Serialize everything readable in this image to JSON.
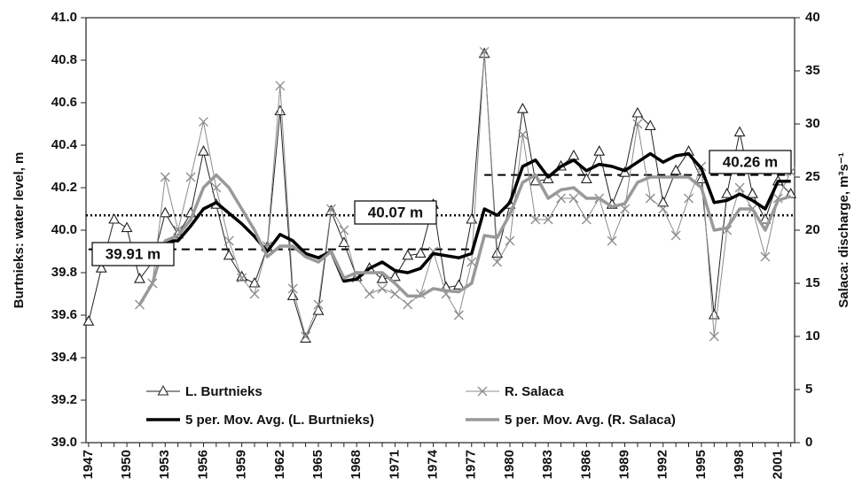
{
  "chart_data": {
    "type": "line",
    "y_label": "Burtnieks: water level, m",
    "y2_label": "Salaca: discharge, m³s⁻¹",
    "x": [
      1947,
      1948,
      1949,
      1950,
      1951,
      1952,
      1953,
      1954,
      1955,
      1956,
      1957,
      1958,
      1959,
      1960,
      1961,
      1962,
      1963,
      1964,
      1965,
      1966,
      1967,
      1968,
      1969,
      1970,
      1971,
      1972,
      1973,
      1974,
      1975,
      1976,
      1977,
      1978,
      1979,
      1980,
      1981,
      1982,
      1983,
      1984,
      1985,
      1986,
      1987,
      1988,
      1989,
      1990,
      1991,
      1992,
      1993,
      1994,
      1995,
      1996,
      1997,
      1998,
      1999,
      2000,
      2001,
      2002
    ],
    "xlim": [
      1946.8,
      2002.3
    ],
    "xticks": [
      1947,
      1950,
      1953,
      1956,
      1959,
      1962,
      1965,
      1968,
      1971,
      1974,
      1977,
      1980,
      1983,
      1986,
      1989,
      1992,
      1995,
      1998,
      2001
    ],
    "ylim": [
      39,
      41
    ],
    "yticks": [
      {
        "value": 39,
        "label": "39.0"
      },
      39.2,
      39.4,
      39.6,
      39.8,
      {
        "value": 40,
        "label": "40.0"
      },
      40.2,
      40.4,
      40.6,
      40.8,
      {
        "value": 41,
        "label": "41.0"
      }
    ],
    "y2lim": [
      0,
      40
    ],
    "y2ticks": [
      0,
      5,
      10,
      15,
      20,
      25,
      30,
      35,
      40
    ],
    "grid": false,
    "series": [
      {
        "name": "L. Burtnieks",
        "color": "#222222",
        "marker": "triangle",
        "width": 1,
        "values": [
          39.57,
          39.82,
          40.05,
          40.01,
          39.77,
          39.85,
          40.08,
          39.98,
          40.08,
          40.37,
          40.12,
          39.88,
          39.78,
          39.75,
          39.92,
          40.56,
          39.69,
          39.49,
          39.62,
          40.09,
          39.94,
          39.78,
          39.82,
          39.77,
          39.78,
          39.88,
          39.89,
          40.12,
          39.73,
          39.74,
          40.05,
          40.83,
          39.89,
          40.12,
          40.57,
          40.23,
          40.24,
          40.3,
          40.35,
          40.24,
          40.37,
          40.12,
          40.27,
          40.55,
          40.49,
          40.13,
          40.28,
          40.37,
          40.24,
          39.6,
          40.17,
          40.46,
          40.17,
          40.05,
          40.23,
          40.17
        ]
      },
      {
        "name": "R. Salaca",
        "color": "#8c8c8c",
        "marker": "x",
        "width": 1,
        "axis": "y2",
        "values": [
          null,
          null,
          null,
          null,
          13,
          15,
          25,
          20,
          25,
          30.2,
          24,
          19,
          15.5,
          14,
          18.5,
          33.6,
          14.5,
          10,
          13,
          22,
          20,
          15.5,
          14,
          14.5,
          14,
          13,
          14,
          18,
          14,
          12,
          17,
          36.8,
          17,
          19,
          29,
          21,
          21,
          23,
          23,
          21,
          23,
          19,
          22,
          30,
          23,
          22,
          19.5,
          23,
          26,
          10,
          20,
          24,
          22,
          17.5,
          23,
          25.5
        ]
      },
      {
        "name": "5 per. Mov. Avg. (L. Burtnieks)",
        "color": "#000000",
        "marker": "none",
        "width": 3.5,
        "values": [
          null,
          null,
          null,
          null,
          null,
          null,
          39.95,
          39.95,
          40.02,
          40.1,
          40.13,
          40.08,
          40.03,
          39.97,
          39.9,
          39.98,
          39.95,
          39.89,
          39.87,
          39.9,
          39.76,
          39.77,
          39.82,
          39.85,
          39.81,
          39.8,
          39.82,
          39.89,
          39.88,
          39.87,
          39.89,
          40.1,
          40.07,
          40.13,
          40.3,
          40.33,
          40.25,
          40.3,
          40.33,
          40.28,
          40.31,
          40.3,
          40.28,
          40.32,
          40.36,
          40.32,
          40.35,
          40.36,
          40.29,
          40.13,
          40.14,
          40.17,
          40.14,
          40.1,
          40.23,
          40.23
        ]
      },
      {
        "name": "5 per. Mov. Avg. (R. Salaca)",
        "color": "#999999",
        "marker": "none",
        "width": 3.5,
        "axis": "y2",
        "values": [
          null,
          null,
          null,
          null,
          13,
          15,
          19,
          19.5,
          21,
          24,
          25.2,
          24,
          22,
          20,
          17.5,
          18.5,
          18.5,
          17.5,
          17,
          18,
          15.5,
          16,
          16,
          16,
          15,
          13.8,
          13.8,
          14.5,
          14.3,
          14.2,
          15,
          19.5,
          19.3,
          21.5,
          24.5,
          25.2,
          23,
          23.8,
          24,
          23,
          23,
          22.2,
          22.5,
          24.5,
          25,
          25,
          25,
          25,
          24,
          20,
          20.2,
          22,
          22,
          20,
          22.8,
          23.2
        ]
      }
    ],
    "reference_lines": [
      {
        "label": "39.91 m",
        "value": 39.91,
        "style": "dashed",
        "x": [
          1947,
          1977
        ]
      },
      {
        "label": "40.07 m",
        "value": 40.07,
        "style": "dotted",
        "x": [
          1946.8,
          2002.3
        ]
      },
      {
        "label": "40.26 m",
        "value": 40.26,
        "style": "dashed",
        "x": [
          1978,
          2002
        ]
      }
    ]
  }
}
